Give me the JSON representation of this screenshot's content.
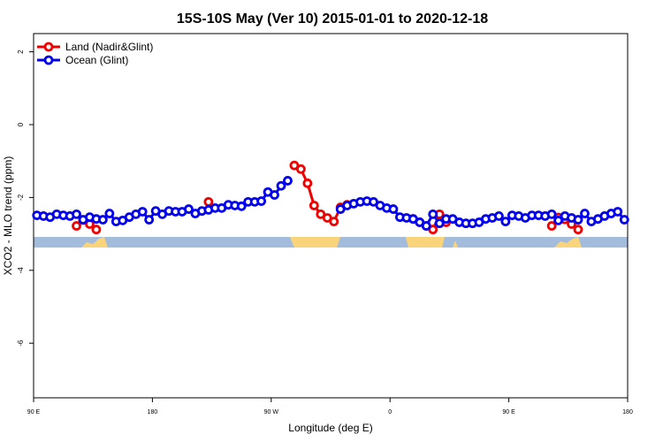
{
  "chart_data": {
    "type": "line",
    "title": "15S-10S May (Ver 10)   2015-01-01 to 2020-12-18",
    "xlabel": "Longitude (deg E)",
    "ylabel": "XCO2 - MLO trend (ppm)",
    "xlim": [
      90,
      540
    ],
    "ylim": [
      -7.5,
      2.5
    ],
    "xticks": [
      {
        "value": 90,
        "label": "90 E"
      },
      180,
      {
        "value": 270,
        "label": "90 W"
      },
      {
        "value": 360,
        "label": "0"
      },
      {
        "value": 450,
        "label": "90 E"
      },
      {
        "value": 540,
        "label": "180"
      }
    ],
    "yticks": [
      2,
      0,
      -2,
      -4,
      -6
    ],
    "legend": "top-left",
    "x": [
      92.5,
      97.5,
      102.5,
      107.5,
      112.5,
      117.5,
      122.5,
      127.5,
      132.5,
      137.5,
      142.5,
      147.5,
      152.5,
      157.5,
      162.5,
      167.5,
      172.5,
      177.5,
      182.5,
      187.5,
      192.5,
      197.5,
      202.5,
      207.5,
      212.5,
      217.5,
      222.5,
      227.5,
      232.5,
      237.5,
      242.5,
      247.5,
      252.5,
      257.5,
      262.5,
      267.5,
      272.5,
      277.5,
      282.5,
      287.5,
      292.5,
      297.5,
      302.5,
      307.5,
      312.5,
      317.5,
      322.5,
      327.5,
      332.5,
      337.5,
      342.5,
      347.5,
      352.5,
      357.5,
      362.5,
      367.5,
      372.5,
      377.5,
      382.5,
      387.5,
      392.5,
      397.5,
      402.5,
      407.5,
      412.5,
      417.5,
      422.5,
      427.5,
      432.5,
      437.5,
      442.5,
      447.5,
      452.5,
      457.5,
      462.5,
      467.5,
      472.5,
      477.5,
      482.5,
      487.5,
      492.5,
      497.5,
      502.5,
      507.5,
      512.5,
      517.5,
      522.5,
      527.5,
      532.5,
      537.5
    ],
    "series": [
      {
        "name": "Land (Nadir&Glint)",
        "color": "#ee0000",
        "values": [
          null,
          null,
          null,
          null,
          null,
          null,
          -2.78,
          -2.62,
          -2.73,
          -2.88,
          null,
          null,
          null,
          null,
          null,
          null,
          null,
          null,
          null,
          null,
          null,
          null,
          null,
          null,
          null,
          null,
          -2.12,
          null,
          null,
          null,
          null,
          null,
          null,
          null,
          null,
          null,
          null,
          null,
          null,
          -1.12,
          -1.22,
          -1.61,
          -2.22,
          -2.46,
          -2.56,
          -2.66,
          -2.27,
          -2.2,
          null,
          null,
          null,
          null,
          null,
          null,
          null,
          null,
          null,
          -2.59,
          -2.68,
          -2.78,
          -2.88,
          -2.46,
          -2.68,
          null,
          null,
          null,
          null,
          null,
          null,
          null,
          null,
          null,
          null,
          null,
          null,
          null,
          null,
          null,
          -2.78,
          -2.55,
          -2.6,
          -2.73,
          -2.88,
          null,
          null,
          null,
          null,
          null,
          null,
          null
        ]
      },
      {
        "name": "Ocean (Glint)",
        "color": "#0000ee",
        "values": [
          -2.49,
          -2.51,
          -2.54,
          -2.46,
          -2.49,
          -2.51,
          -2.46,
          -2.61,
          -2.54,
          -2.59,
          -2.61,
          -2.44,
          -2.66,
          -2.63,
          -2.54,
          -2.46,
          -2.39,
          -2.61,
          -2.37,
          -2.46,
          -2.37,
          -2.39,
          -2.39,
          -2.32,
          -2.44,
          -2.37,
          -2.34,
          -2.29,
          -2.29,
          -2.2,
          -2.22,
          -2.24,
          -2.12,
          -2.12,
          -2.1,
          -1.85,
          -1.93,
          -1.68,
          -1.54,
          null,
          null,
          null,
          null,
          null,
          null,
          null,
          -2.32,
          -2.22,
          -2.17,
          -2.12,
          -2.1,
          -2.12,
          -2.22,
          -2.29,
          -2.32,
          -2.54,
          -2.56,
          -2.59,
          -2.68,
          -2.78,
          -2.46,
          -2.71,
          -2.59,
          -2.59,
          -2.68,
          -2.71,
          -2.71,
          -2.68,
          -2.59,
          -2.56,
          -2.51,
          -2.66,
          -2.49,
          -2.51,
          -2.56,
          -2.49,
          -2.49,
          -2.51,
          -2.46,
          -2.63,
          -2.51,
          -2.56,
          -2.61,
          -2.44,
          -2.66,
          -2.59,
          -2.51,
          -2.44,
          -2.39,
          -2.61
        ]
      }
    ]
  }
}
